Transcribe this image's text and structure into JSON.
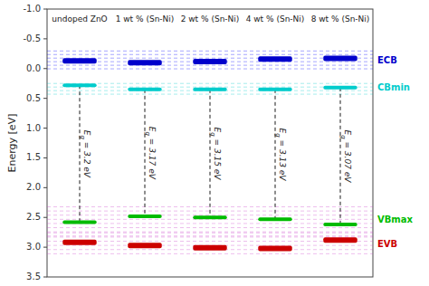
{
  "chart_data": {
    "type": "scatter",
    "y_label": "Energy [eV]",
    "categories": [
      "undoped ZnO",
      "1 wt % (Sn-Ni)",
      "2 wt % (Sn-Ni)",
      "4 wt % (Sn-Ni)",
      "8 wt % (Sn-Ni)"
    ],
    "series": [
      {
        "name": "ECB",
        "color": "#0000cc",
        "marker": "dash",
        "values": [
          -0.13,
          -0.1,
          -0.12,
          -0.16,
          -0.17
        ]
      },
      {
        "name": "CBmin",
        "color": "#00cccc",
        "marker": "dash",
        "values": [
          0.28,
          0.35,
          0.35,
          0.35,
          0.32
        ]
      },
      {
        "name": "VBmax",
        "color": "#00bb00",
        "marker": "dash",
        "values": [
          2.58,
          2.48,
          2.5,
          2.53,
          2.62
        ]
      },
      {
        "name": "EVB",
        "color": "#cc0000",
        "marker": "dash",
        "values": [
          2.92,
          2.97,
          3.01,
          3.02,
          2.88
        ]
      }
    ],
    "bandgaps": {
      "values": [
        3.2,
        3.17,
        3.15,
        3.13,
        3.07
      ],
      "value_labels": [
        "Eg = 3.2 eV",
        "Eg = 3.17 eV",
        "Eg = 3.15 eV",
        "Eg = 3.13 eV",
        "Eg = 3.07 eV"
      ]
    },
    "reference_lines": [
      {
        "color": "#0000ff",
        "line_style": "dashed",
        "values": [
          -0.296,
          -0.236,
          -0.176,
          -0.116,
          -0.056,
          0.004
        ]
      },
      {
        "color": "#00cccc",
        "line_style": "dashed",
        "values": [
          0.25,
          0.31,
          0.37,
          0.43
        ]
      },
      {
        "color": "#cc44cc",
        "line_style": "dashed",
        "values": [
          2.322,
          2.392,
          2.462,
          2.532,
          2.602,
          2.672,
          2.742,
          2.812
        ]
      },
      {
        "color": "#cc44cc",
        "line_style": "dashed",
        "values": [
          2.76,
          2.83,
          2.9,
          2.97,
          3.04,
          3.11
        ]
      }
    ],
    "ylim": [
      3.5,
      -1.0
    ],
    "yticks": [
      {
        "value": -1.0,
        "label": "-1.0"
      },
      -0.5,
      {
        "value": 0.0,
        "label": "0.0"
      },
      0.5,
      {
        "value": 1.0,
        "label": "1.0"
      },
      1.5,
      {
        "value": 2.0,
        "label": "2.0"
      },
      2.5,
      {
        "value": 3.0,
        "label": "3.0"
      },
      3.5
    ],
    "grid": false
  }
}
